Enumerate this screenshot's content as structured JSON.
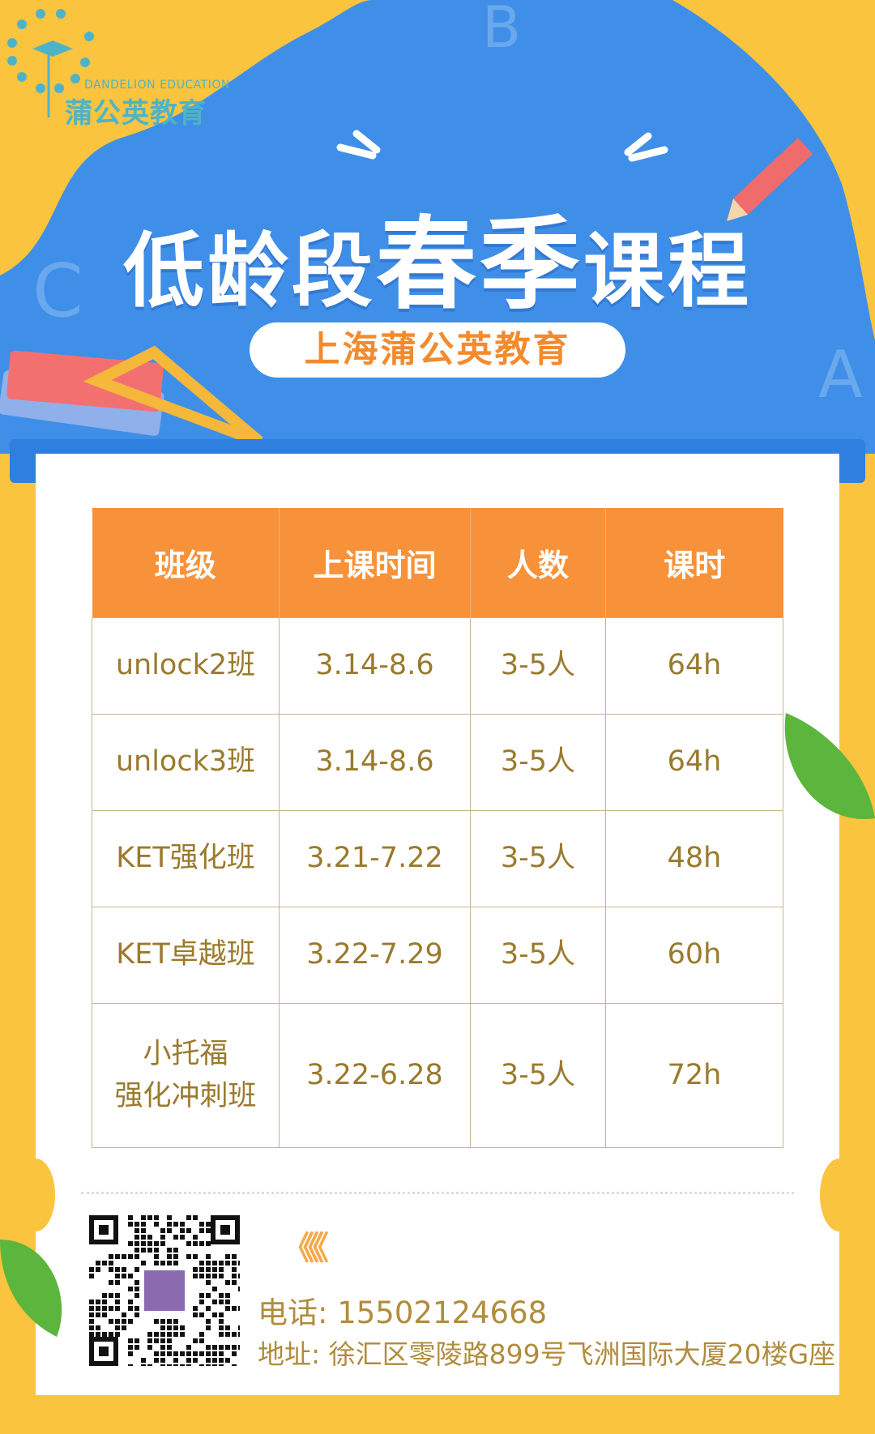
{
  "logo": {
    "en": "DANDELION EDUCATION",
    "cn": "蒲公英教育"
  },
  "title": {
    "part1": "低龄段",
    "part2": "春季",
    "part3": "课程"
  },
  "subtitle": "上海蒲公英教育",
  "colors": {
    "background": "#fbc43e",
    "banner": "#3f8fe8",
    "header": "#f7923a",
    "text": "#9a7a2c"
  },
  "table": {
    "headers": [
      "班级",
      "上课时间",
      "人数",
      "课时"
    ],
    "rows": [
      {
        "cls": "unlock2班",
        "time": "3.14-8.6",
        "size": "3-5人",
        "hours": "64h"
      },
      {
        "cls": "unlock3班",
        "time": "3.14-8.6",
        "size": "3-5人",
        "hours": "64h"
      },
      {
        "cls": "KET强化班",
        "time": "3.21-7.22",
        "size": "3-5人",
        "hours": "48h"
      },
      {
        "cls": "KET卓越班",
        "time": "3.22-7.29",
        "size": "3-5人",
        "hours": "60h"
      },
      {
        "cls_line1": "小托福",
        "cls_line2": "强化冲刺班",
        "time": "3.22-6.28",
        "size": "3-5人",
        "hours": "72h"
      }
    ]
  },
  "contact": {
    "arrows": "《《《《",
    "phone": "电话: 15502124668",
    "address": "地址: 徐汇区零陵路899号飞洲国际大厦20楼G座"
  }
}
